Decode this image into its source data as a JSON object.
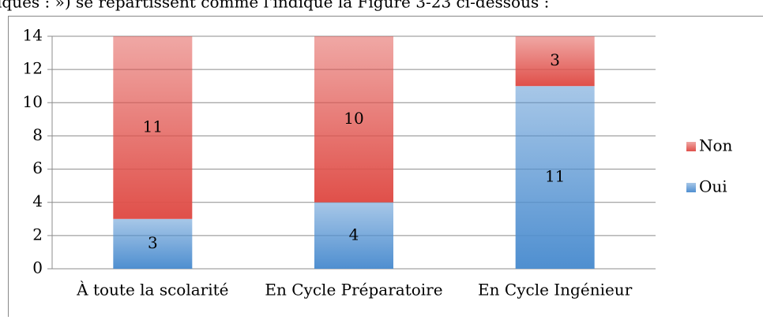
{
  "caption": "iques : ») se répartissent comme l'indique la Figure 3-23 ci-dessous :",
  "chart_data": {
    "type": "stacked_bar",
    "categories": [
      "À toute la scolarité",
      "En Cycle Préparatoire",
      "En Cycle Ingénieur"
    ],
    "series": [
      {
        "name": "Oui",
        "color": "#4f8fd0",
        "values": [
          3,
          4,
          11
        ]
      },
      {
        "name": "Non",
        "color": "#e0504a",
        "values": [
          11,
          10,
          3
        ]
      }
    ],
    "ylim": [
      0,
      14
    ],
    "yticks": [
      0,
      2,
      4,
      6,
      8,
      10,
      12,
      14
    ],
    "grid": true,
    "legend": "right"
  }
}
